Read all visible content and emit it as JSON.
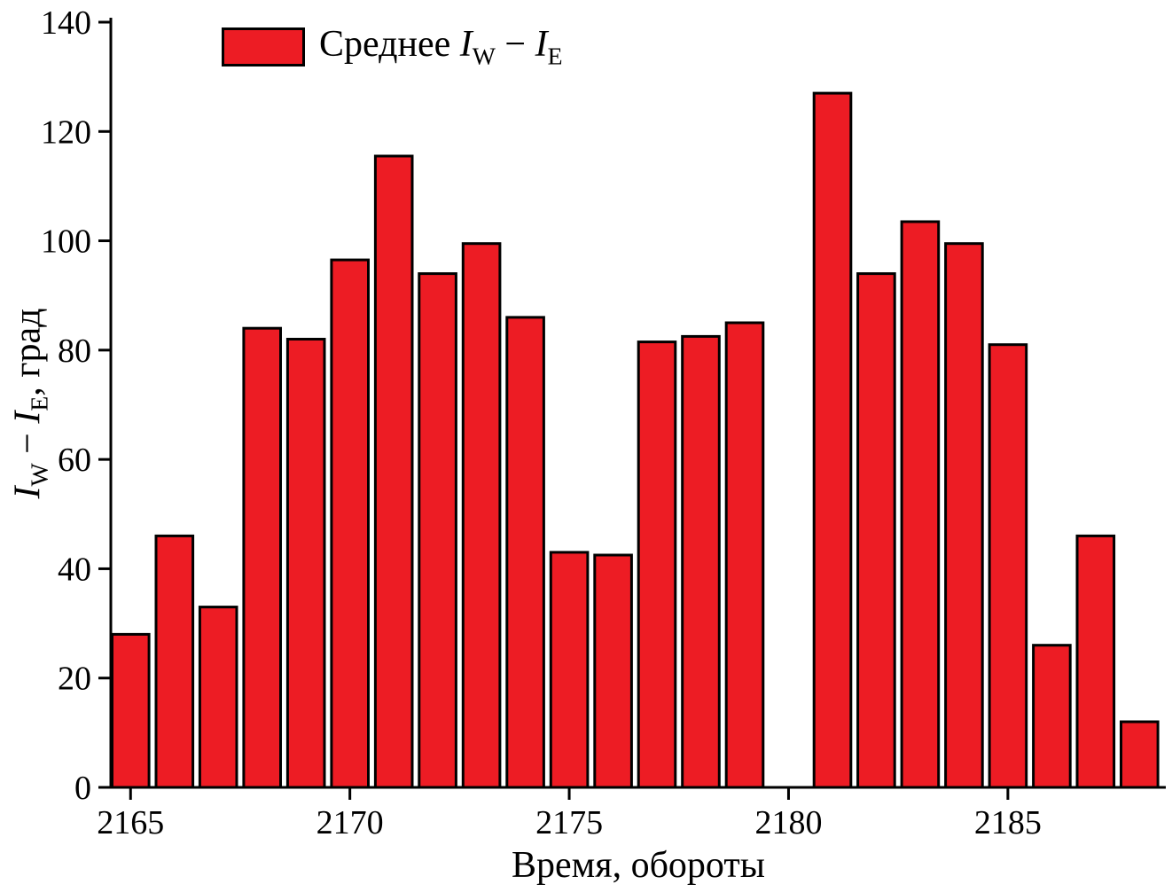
{
  "figure": {
    "background": "#ffffff",
    "axis_color": "#000000"
  },
  "legend": {
    "prefix": "Среднее ",
    "var1": "I",
    "sub1": "W",
    "op": " − ",
    "var2": "I",
    "sub2": "E"
  },
  "labels": {
    "x": "Время, обороты",
    "y": {
      "var1": "I",
      "sub1": "W",
      "op": " − ",
      "var2": "I",
      "sub2": "E",
      "suffix": ", град"
    }
  },
  "chart_data": {
    "type": "bar",
    "title": "",
    "xlabel": "Время, обороты",
    "ylabel": "I_W − I_E, град",
    "legend": [
      "Среднее I_W − I_E"
    ],
    "legend_position": "upper left",
    "grid": false,
    "bar_color": "#ed1c24",
    "bar_edge_color": "#000000",
    "xlim": [
      2164.55,
      2188.6
    ],
    "ylim": [
      0,
      140
    ],
    "xticks": [
      2165,
      2170,
      2175,
      2180,
      2185
    ],
    "yticks": [
      0,
      20,
      40,
      60,
      80,
      100,
      120,
      140
    ],
    "x": [
      2165,
      2166,
      2167,
      2168,
      2169,
      2170,
      2171,
      2172,
      2173,
      2174,
      2175,
      2176,
      2177,
      2178,
      2179,
      2181,
      2182,
      2183,
      2184,
      2185,
      2186,
      2187,
      2188
    ],
    "values": [
      28,
      46,
      33,
      84,
      82,
      96.5,
      115.5,
      94,
      99.5,
      86,
      43,
      42.5,
      81.5,
      82.5,
      85,
      127,
      94,
      103.5,
      99.5,
      81,
      26,
      46,
      12
    ]
  }
}
